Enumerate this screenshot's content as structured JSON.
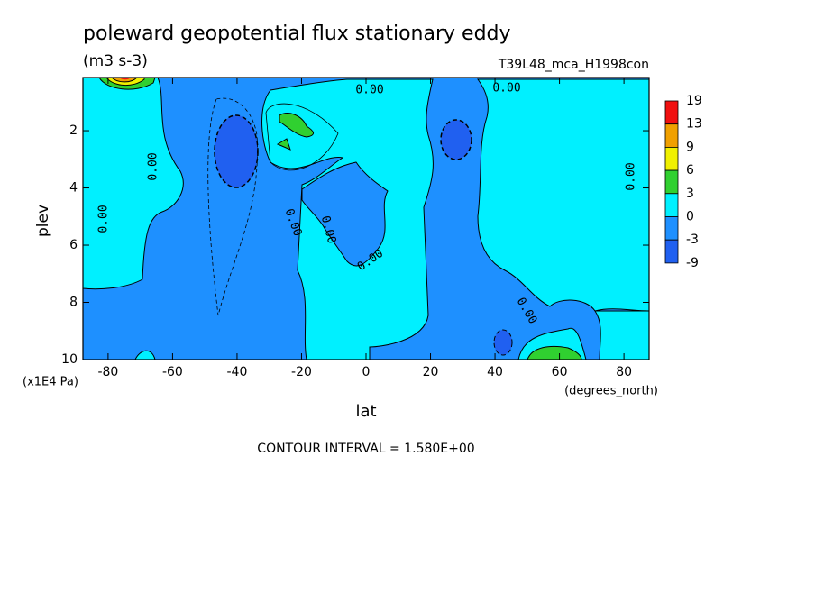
{
  "chart_data": {
    "type": "contour",
    "title": "poleward geopotential flux stationary eddy",
    "subtitle": "(m3 s-3)",
    "run_label": "T39L48_mca_H1998con",
    "xlabel": "lat",
    "xunits": "(degrees_north)",
    "ylabel": "plev",
    "yunits": "(x1E4 Pa)",
    "xlim": [
      -87.8,
      87.8
    ],
    "xticks": [
      -80,
      -60,
      -40,
      -20,
      0,
      20,
      40,
      60,
      80
    ],
    "ylim": [
      0.14,
      10
    ],
    "y_reversed": true,
    "yticks": [
      2,
      4,
      6,
      8,
      10
    ],
    "colorbar": {
      "levels": [
        19,
        13,
        9,
        6,
        3,
        0,
        -3,
        -9
      ],
      "colors": [
        "#f01010",
        "#f0a000",
        "#f0f000",
        "#30d030",
        "#00f0ff",
        "#1e90ff",
        "#2060f0"
      ]
    },
    "contour_labels": [
      "0.00",
      "0.00",
      "0.00",
      "0.00",
      "0.00",
      "0.00",
      "0.00",
      "0.00",
      "0.00"
    ],
    "footer": "CONTOUR INTERVAL = 1.580E+00"
  }
}
